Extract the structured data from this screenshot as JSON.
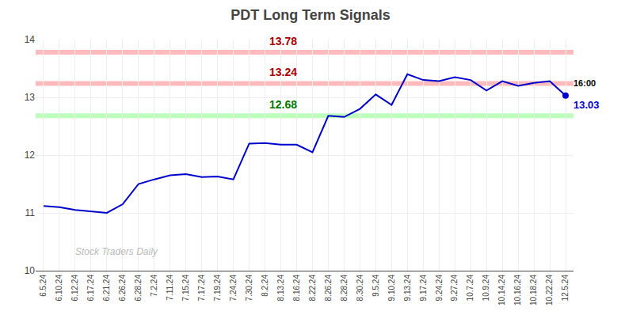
{
  "chart_data": {
    "type": "line",
    "title": "PDT Long Term Signals",
    "categories": [
      "6.5.24",
      "6.10.24",
      "6.12.24",
      "6.17.24",
      "6.21.24",
      "6.26.24",
      "6.28.24",
      "7.2.24",
      "7.11.24",
      "7.15.24",
      "7.17.24",
      "7.19.24",
      "7.24.24",
      "7.30.24",
      "8.2.24",
      "8.13.24",
      "8.16.24",
      "8.22.24",
      "8.26.24",
      "8.28.24",
      "8.30.24",
      "9.5.24",
      "9.10.24",
      "9.13.24",
      "9.17.24",
      "9.24.24",
      "9.27.24",
      "10.7.24",
      "10.9.24",
      "10.14.24",
      "10.16.24",
      "10.18.24",
      "10.22.24",
      "12.5.24"
    ],
    "values": [
      11.12,
      11.1,
      11.05,
      11.02,
      11.0,
      11.15,
      11.5,
      11.58,
      11.65,
      11.67,
      11.62,
      11.63,
      11.58,
      12.2,
      12.21,
      12.18,
      12.18,
      12.05,
      12.68,
      12.66,
      12.8,
      13.05,
      12.87,
      13.4,
      13.3,
      13.28,
      13.35,
      13.3,
      13.12,
      13.28,
      13.2,
      13.25,
      13.28,
      13.03
    ],
    "color": "#0000cc",
    "hlines": [
      {
        "value": 13.78,
        "label": "13.78",
        "color": "#ffbbbb",
        "label_color": "#aa0000"
      },
      {
        "value": 13.24,
        "label": "13.24",
        "color": "#ffbbbb",
        "label_color": "#aa0000"
      },
      {
        "value": 12.68,
        "label": "12.68",
        "color": "#bbffbb",
        "label_color": "#007700"
      }
    ],
    "annotations": [
      {
        "text": "16:00",
        "color": "#000000"
      },
      {
        "text": "13.03",
        "color": "#0000cc"
      }
    ],
    "watermark": {
      "text": "Stock Traders Daily",
      "color": "#aaaaaa"
    },
    "ylim": [
      10,
      14
    ],
    "yticks": [
      10,
      11,
      12,
      13,
      14
    ],
    "grid": true
  }
}
